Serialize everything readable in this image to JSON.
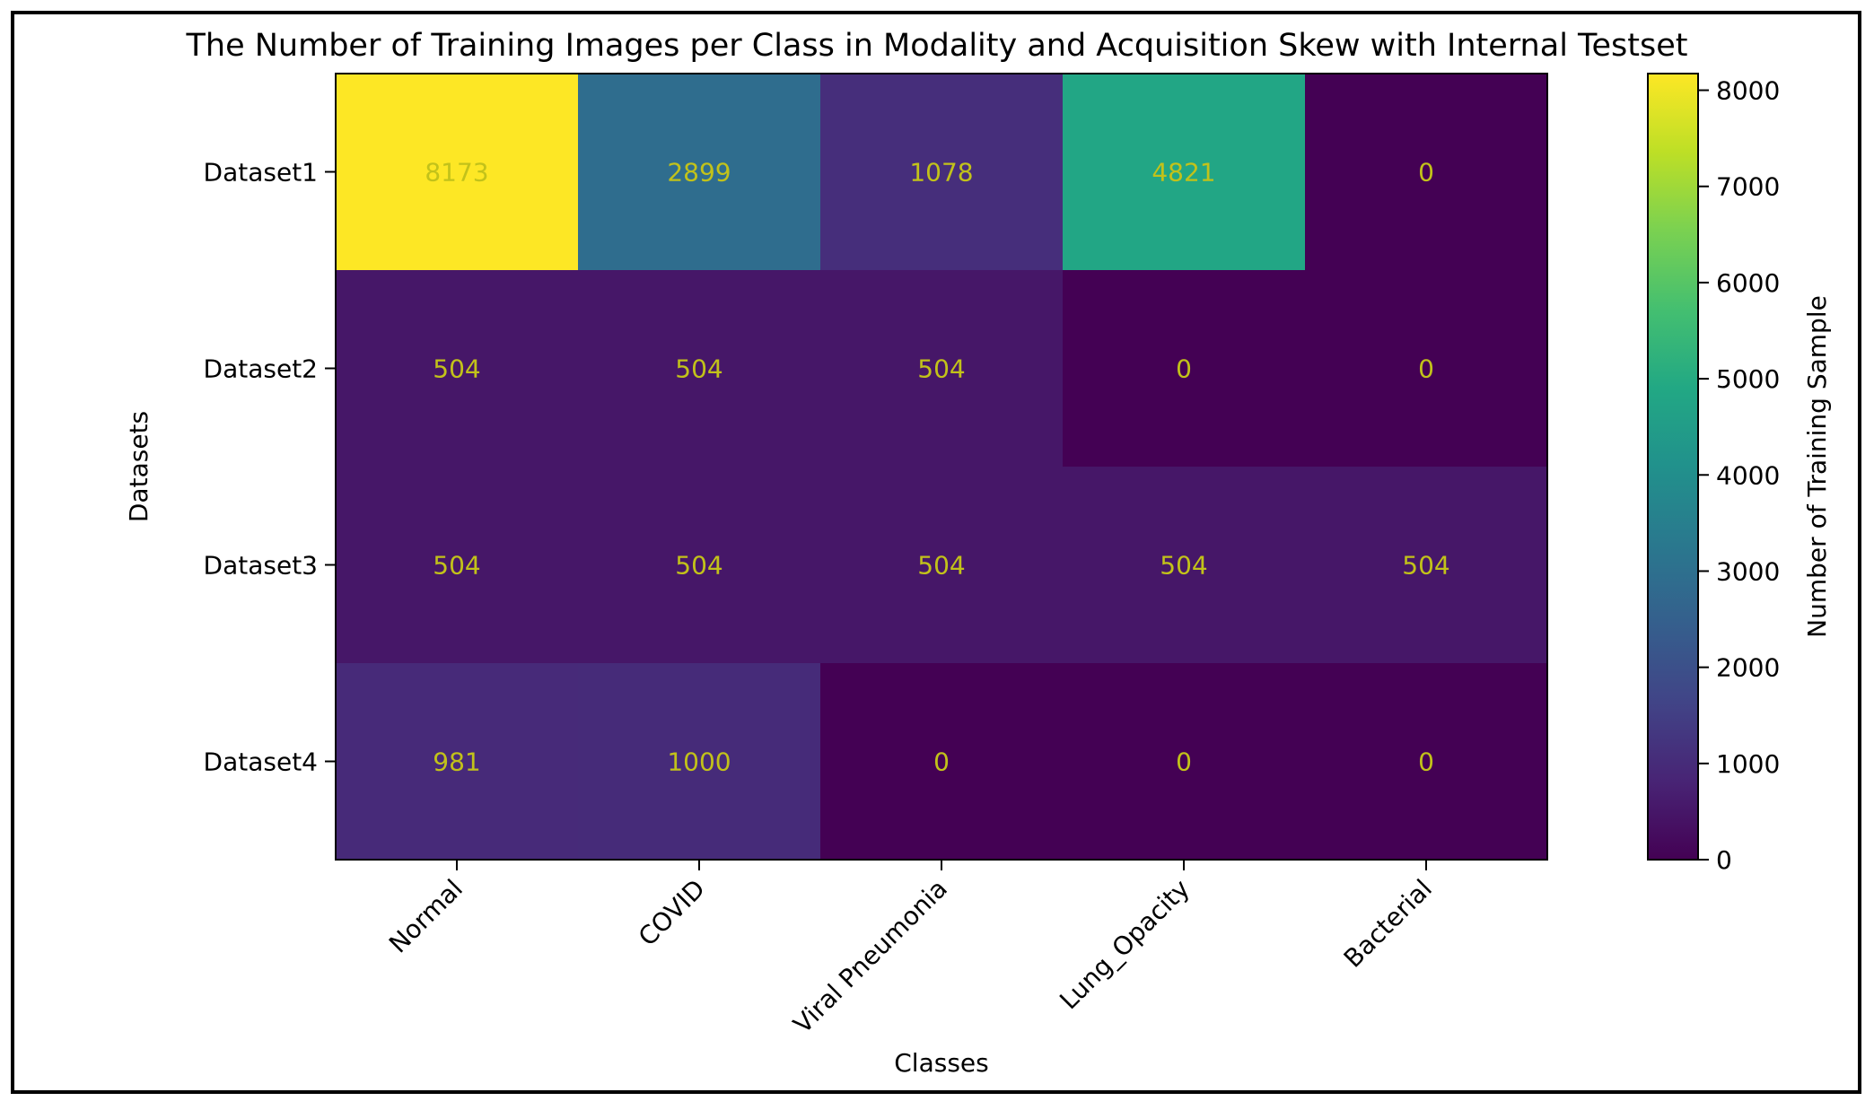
{
  "chart_data": {
    "type": "heatmap",
    "title": "The Number of Training Images per Class in Modality and Acquisition Skew with Internal Testset",
    "xlabel": "Classes",
    "ylabel": "Datasets",
    "x_categories": [
      "Normal",
      "COVID",
      "Viral Pneumonia",
      "Lung_Opacity",
      "Bacterial"
    ],
    "y_categories": [
      "Dataset1",
      "Dataset2",
      "Dataset3",
      "Dataset4"
    ],
    "values": [
      [
        8173,
        2899,
        1078,
        4821,
        0
      ],
      [
        504,
        504,
        504,
        0,
        0
      ],
      [
        504,
        504,
        504,
        504,
        504
      ],
      [
        981,
        1000,
        0,
        0,
        0
      ]
    ],
    "colorbar": {
      "label": "Number of Training Sample",
      "range": [
        0,
        8173
      ],
      "ticks": [
        0,
        1000,
        2000,
        3000,
        4000,
        5000,
        6000,
        7000,
        8000
      ],
      "colormap": "viridis"
    },
    "annotation_color": "#c2c21a",
    "grid": false
  }
}
